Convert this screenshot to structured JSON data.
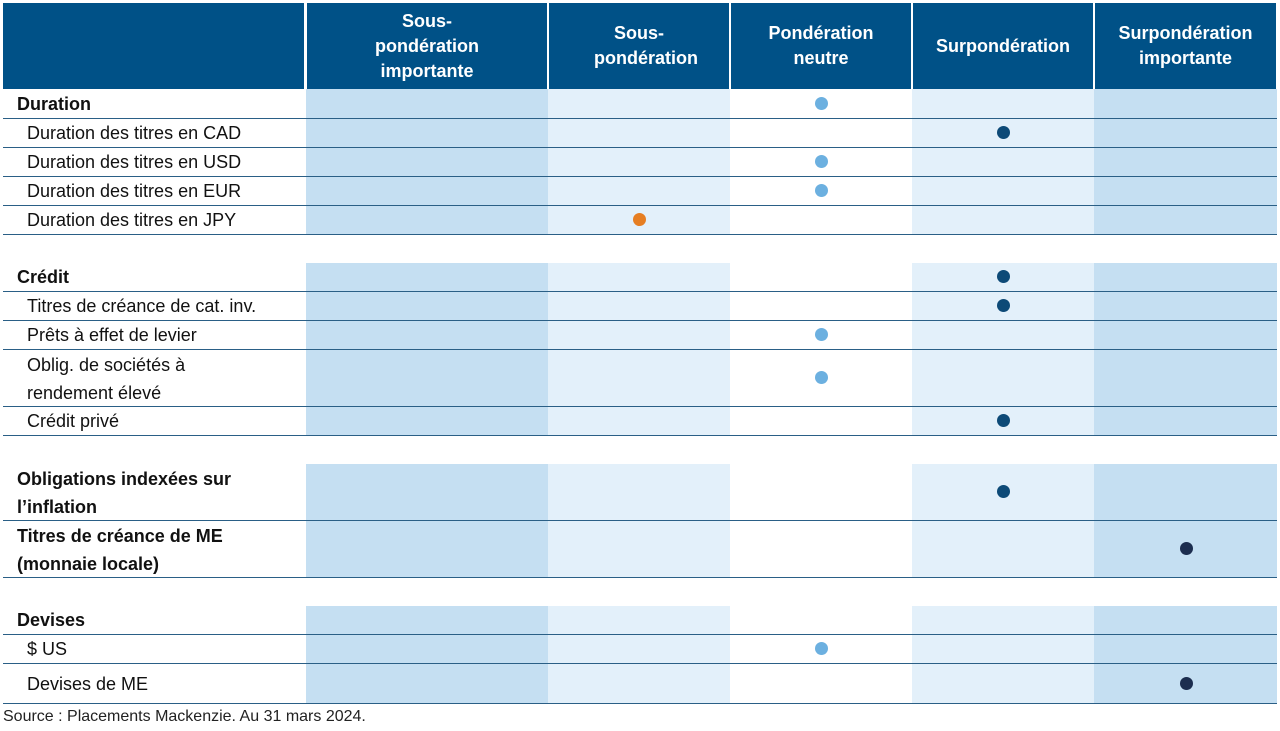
{
  "colors": {
    "header": "#005187",
    "neutral_dot": "#6cb0e0",
    "over_dot": "#0d4a77",
    "strong_over_dot": "#1c2d4f",
    "under_dot": "#e67e22"
  },
  "headers": [
    "Sous-pondération importante",
    "Sous-pondération",
    "Pondération neutre",
    "Surpondération",
    "Surpondération importante"
  ],
  "rows": [
    {
      "label": "Duration",
      "bold": true,
      "position": 3
    },
    {
      "label": "Duration des titres en CAD",
      "bold": false,
      "position": 4
    },
    {
      "label": "Duration des titres en USD",
      "bold": false,
      "position": 3
    },
    {
      "label": "Duration des titres en EUR",
      "bold": false,
      "position": 3
    },
    {
      "label": "Duration des titres en JPY",
      "bold": false,
      "position": 2
    },
    {
      "label": "Crédit",
      "bold": true,
      "position": 4
    },
    {
      "label": "Titres de créance de cat. inv.",
      "bold": false,
      "position": 4
    },
    {
      "label": "Prêts à effet de levier",
      "bold": false,
      "position": 3
    },
    {
      "label": "Oblig. de sociétés à rendement élevé",
      "bold": false,
      "position": 3
    },
    {
      "label": "Crédit privé",
      "bold": false,
      "position": 4
    },
    {
      "label": "Obligations indexées sur l’inflation",
      "bold": true,
      "position": 4
    },
    {
      "label": "Titres de créance de ME (monnaie locale)",
      "bold": true,
      "position": 5
    },
    {
      "label": "Devises",
      "bold": true,
      "position": null
    },
    {
      "label": "$ US",
      "bold": false,
      "position": 3
    },
    {
      "label": "Devises de ME",
      "bold": false,
      "position": 5
    }
  ],
  "source": "Source : Placements Mackenzie. Au 31 mars 2024."
}
